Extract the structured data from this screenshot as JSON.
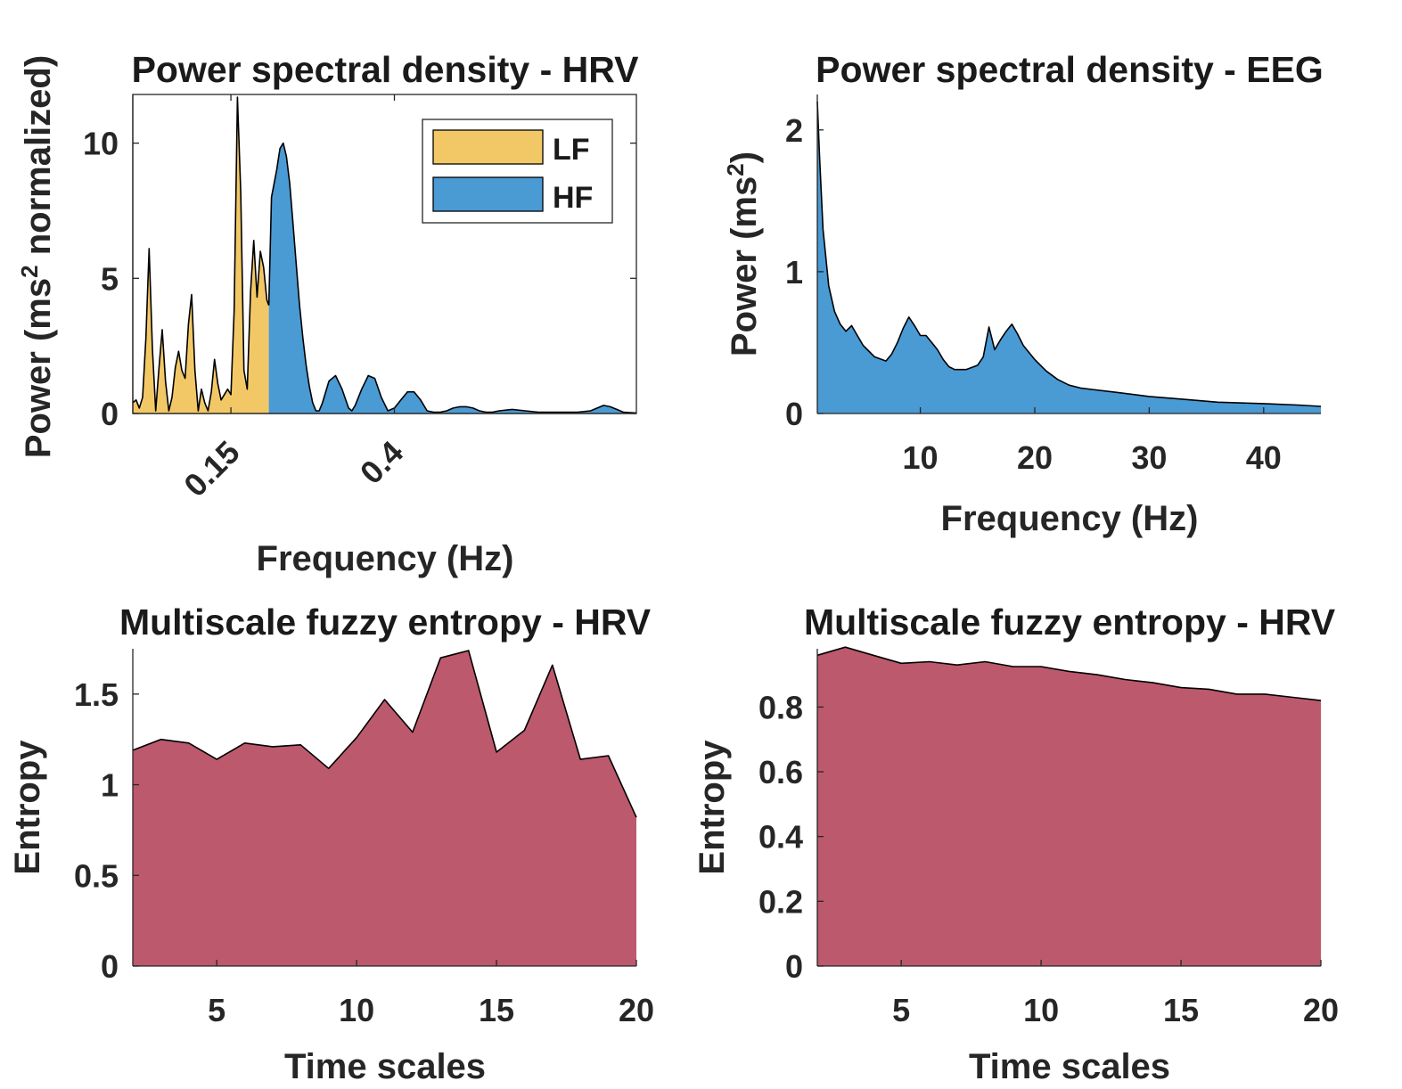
{
  "colors": {
    "lf": "#f2c867",
    "hf": "#4a9ad4",
    "entropy": "#bd596c",
    "line": "#000000"
  },
  "panels": {
    "hrv_psd": {
      "title": "Power spectral density - HRV",
      "xlabel": "Frequency (Hz)",
      "ylabel_main": "Power (ms",
      "ylabel_sup": "2",
      "ylabel_tail": " normalized)"
    },
    "eeg_psd": {
      "title": "Power spectral density - EEG",
      "xlabel": "Frequency (Hz)",
      "ylabel_main": "Power (ms",
      "ylabel_sup": "2",
      "ylabel_tail": ")"
    },
    "mse_1": {
      "title": "Multiscale fuzzy entropy - HRV",
      "xlabel": "Time scales",
      "ylabel": "Entropy"
    },
    "mse_2": {
      "title": "Multiscale fuzzy entropy - HRV",
      "xlabel": "Time scales",
      "ylabel": "Entropy"
    }
  },
  "chart_data": [
    {
      "id": "hrv_psd",
      "type": "area",
      "title": "Power spectral density - HRV",
      "xlabel": "Frequency (Hz)",
      "ylabel": "Power (ms2 normalized)",
      "xlim": [
        0,
        0.77
      ],
      "ylim": [
        0,
        11.8
      ],
      "xticks": [
        0.15,
        0.4
      ],
      "xticklabels": [
        "0.15",
        "0.4"
      ],
      "yticks": [
        0,
        5,
        10
      ],
      "yticklabels": [
        "0",
        "5",
        "10"
      ],
      "legend": {
        "position": "top-right",
        "entries": [
          "LF",
          "HF"
        ]
      },
      "series": [
        {
          "name": "LF",
          "color": "#f2c867",
          "x": [
            0,
            0.005,
            0.01,
            0.015,
            0.02,
            0.025,
            0.03,
            0.035,
            0.04,
            0.045,
            0.05,
            0.055,
            0.06,
            0.065,
            0.07,
            0.075,
            0.08,
            0.085,
            0.09,
            0.095,
            0.1,
            0.105,
            0.11,
            0.115,
            0.12,
            0.125,
            0.13,
            0.135,
            0.14,
            0.145,
            0.15,
            0.155,
            0.16,
            0.165,
            0.17,
            0.175,
            0.18,
            0.185,
            0.19,
            0.195,
            0.2,
            0.205,
            0.208
          ],
          "y": [
            0.4,
            0.5,
            0.2,
            0.6,
            2.8,
            6.1,
            2.4,
            0.1,
            1.7,
            3.1,
            1.2,
            0.1,
            0.6,
            1.7,
            2.3,
            1.6,
            1.3,
            3.3,
            4.4,
            1.6,
            0.1,
            0.9,
            0.4,
            0.1,
            0.8,
            2.0,
            1.1,
            0.5,
            0.7,
            0.9,
            0.7,
            3.8,
            11.7,
            8.2,
            1.6,
            0.9,
            4.5,
            6.4,
            4.3,
            6.0,
            5.4,
            4.2,
            4.0
          ]
        },
        {
          "name": "HF",
          "color": "#4a9ad4",
          "x": [
            0.208,
            0.212,
            0.22,
            0.225,
            0.23,
            0.235,
            0.24,
            0.245,
            0.25,
            0.255,
            0.26,
            0.265,
            0.27,
            0.275,
            0.28,
            0.285,
            0.29,
            0.3,
            0.31,
            0.32,
            0.33,
            0.335,
            0.34,
            0.35,
            0.36,
            0.37,
            0.38,
            0.39,
            0.4,
            0.41,
            0.42,
            0.43,
            0.44,
            0.45,
            0.46,
            0.47,
            0.48,
            0.49,
            0.5,
            0.51,
            0.52,
            0.53,
            0.54,
            0.55,
            0.56,
            0.58,
            0.6,
            0.62,
            0.64,
            0.66,
            0.68,
            0.7,
            0.71,
            0.72,
            0.73,
            0.74,
            0.75,
            0.77
          ],
          "y": [
            4.0,
            8.0,
            9.0,
            9.8,
            10.0,
            9.5,
            8.5,
            7.0,
            5.5,
            4.0,
            2.8,
            1.8,
            1.0,
            0.4,
            0.1,
            0.1,
            0.4,
            1.2,
            1.4,
            0.9,
            0.2,
            0.1,
            0.3,
            0.9,
            1.4,
            1.3,
            0.6,
            0.1,
            0.2,
            0.5,
            0.8,
            0.8,
            0.5,
            0.1,
            0.05,
            0.05,
            0.1,
            0.2,
            0.25,
            0.25,
            0.2,
            0.1,
            0.05,
            0.05,
            0.1,
            0.15,
            0.1,
            0.05,
            0.05,
            0.05,
            0.05,
            0.1,
            0.2,
            0.3,
            0.25,
            0.15,
            0.05,
            0.02
          ]
        }
      ]
    },
    {
      "id": "eeg_psd",
      "type": "area",
      "title": "Power spectral density - EEG",
      "xlabel": "Frequency (Hz)",
      "ylabel": "Power (ms2)",
      "xlim": [
        1,
        45
      ],
      "ylim": [
        0,
        2.25
      ],
      "xticks": [
        10,
        20,
        30,
        40
      ],
      "xticklabels": [
        "10",
        "20",
        "30",
        "40"
      ],
      "yticks": [
        0,
        1,
        2
      ],
      "yticklabels": [
        "0",
        "1",
        "2"
      ],
      "series": [
        {
          "name": "",
          "color": "#4a9ad4",
          "x": [
            1,
            1.2,
            1.5,
            2,
            2.5,
            3,
            3.5,
            4,
            4.5,
            5,
            5.5,
            6,
            7,
            7.5,
            8,
            8.5,
            9,
            9.5,
            10,
            10.5,
            11,
            11.5,
            12,
            12.5,
            13,
            14,
            15,
            15.5,
            16,
            16.5,
            17,
            17.5,
            18,
            18.5,
            19,
            20,
            21,
            22,
            23,
            24,
            25,
            27,
            30,
            33,
            36,
            40,
            43,
            45
          ],
          "y": [
            2.2,
            1.8,
            1.3,
            0.9,
            0.72,
            0.63,
            0.58,
            0.62,
            0.55,
            0.48,
            0.44,
            0.4,
            0.37,
            0.42,
            0.5,
            0.6,
            0.68,
            0.62,
            0.55,
            0.55,
            0.5,
            0.45,
            0.38,
            0.33,
            0.31,
            0.31,
            0.34,
            0.4,
            0.61,
            0.45,
            0.52,
            0.58,
            0.63,
            0.56,
            0.48,
            0.38,
            0.3,
            0.24,
            0.2,
            0.18,
            0.17,
            0.15,
            0.12,
            0.1,
            0.08,
            0.07,
            0.06,
            0.05
          ]
        }
      ]
    },
    {
      "id": "mse_1",
      "type": "area",
      "title": "Multiscale fuzzy entropy - HRV",
      "xlabel": "Time scales",
      "ylabel": "Entropy",
      "xlim": [
        2,
        20
      ],
      "ylim": [
        0,
        1.75
      ],
      "xticks": [
        5,
        10,
        15,
        20
      ],
      "xticklabels": [
        "5",
        "10",
        "15",
        "20"
      ],
      "yticks": [
        0,
        0.5,
        1,
        1.5
      ],
      "yticklabels": [
        "0",
        "0.5",
        "1",
        "1.5"
      ],
      "series": [
        {
          "name": "",
          "color": "#bd596c",
          "x": [
            2,
            3,
            4,
            5,
            6,
            7,
            8,
            9,
            10,
            11,
            12,
            13,
            14,
            15,
            16,
            17,
            18,
            19,
            20
          ],
          "y": [
            1.19,
            1.25,
            1.23,
            1.14,
            1.23,
            1.21,
            1.22,
            1.09,
            1.26,
            1.47,
            1.29,
            1.7,
            1.74,
            1.18,
            1.3,
            1.66,
            1.14,
            1.16,
            0.82
          ]
        }
      ]
    },
    {
      "id": "mse_2",
      "type": "area",
      "title": "Multiscale fuzzy entropy - HRV",
      "xlabel": "Time scales",
      "ylabel": "Entropy",
      "xlim": [
        2,
        20
      ],
      "ylim": [
        0,
        0.98
      ],
      "xticks": [
        5,
        10,
        15,
        20
      ],
      "xticklabels": [
        "5",
        "10",
        "15",
        "20"
      ],
      "yticks": [
        0,
        0.2,
        0.4,
        0.6,
        0.8
      ],
      "yticklabels": [
        "0",
        "0.2",
        "0.4",
        "0.6",
        "0.8"
      ],
      "series": [
        {
          "name": "",
          "color": "#bd596c",
          "x": [
            2,
            3,
            4,
            5,
            6,
            7,
            8,
            9,
            10,
            11,
            12,
            13,
            14,
            15,
            16,
            17,
            18,
            19,
            20
          ],
          "y": [
            0.96,
            0.985,
            0.96,
            0.935,
            0.94,
            0.93,
            0.94,
            0.925,
            0.925,
            0.91,
            0.9,
            0.885,
            0.875,
            0.86,
            0.855,
            0.84,
            0.84,
            0.83,
            0.82
          ]
        }
      ]
    }
  ]
}
